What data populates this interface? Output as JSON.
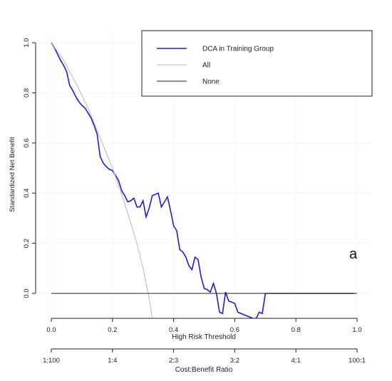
{
  "chart_data": {
    "type": "line",
    "title": "",
    "xlabel": "High Risk Threshold",
    "ylabel": "Standardized Net Benefit",
    "secondary_xlabel": "Cost:Benefit Ratio",
    "panel_label": "a",
    "xlim": [
      0.0,
      1.0
    ],
    "ylim": [
      -0.1,
      1.0
    ],
    "x_ticks": [
      {
        "value": 0.0,
        "label": "0.0"
      },
      {
        "value": 0.2,
        "label": "0.2"
      },
      {
        "value": 0.4,
        "label": "0.4"
      },
      {
        "value": 0.6,
        "label": "0.6"
      },
      {
        "value": 0.8,
        "label": "0.8"
      },
      {
        "value": 1.0,
        "label": "1.0"
      }
    ],
    "y_ticks": [
      {
        "value": 0.0,
        "label": "0.0"
      },
      {
        "value": 0.2,
        "label": "0.2"
      },
      {
        "value": 0.4,
        "label": "0.4"
      },
      {
        "value": 0.6,
        "label": "0.6"
      },
      {
        "value": 0.8,
        "label": "0.8"
      },
      {
        "value": 1.0,
        "label": "1.0"
      }
    ],
    "secondary_ticks": [
      {
        "value": 0.0,
        "label": "1:100"
      },
      {
        "value": 0.2,
        "label": "1:4"
      },
      {
        "value": 0.4,
        "label": "2:3"
      },
      {
        "value": 0.6,
        "label": "3:2"
      },
      {
        "value": 0.8,
        "label": "4:1"
      },
      {
        "value": 1.0,
        "label": "100:1"
      }
    ],
    "grid": true,
    "legend_position": "top-right",
    "series": [
      {
        "name": "DCA in Training Group",
        "color": "#1a1aee",
        "x": [
          0.0,
          0.01,
          0.02,
          0.03,
          0.04,
          0.05,
          0.06,
          0.07,
          0.08,
          0.09,
          0.1,
          0.11,
          0.12,
          0.13,
          0.14,
          0.15,
          0.16,
          0.17,
          0.18,
          0.19,
          0.2,
          0.21,
          0.22,
          0.23,
          0.24,
          0.25,
          0.26,
          0.27,
          0.28,
          0.29,
          0.3,
          0.31,
          0.32,
          0.33,
          0.34,
          0.35,
          0.36,
          0.37,
          0.38,
          0.39,
          0.4,
          0.41,
          0.42,
          0.43,
          0.44,
          0.45,
          0.46,
          0.47,
          0.48,
          0.49,
          0.5,
          0.51,
          0.52,
          0.53,
          0.54,
          0.55,
          0.56,
          0.57,
          0.58,
          0.59,
          0.6,
          0.61,
          0.62,
          0.63,
          0.64,
          0.65,
          0.66,
          0.67,
          0.68,
          0.69,
          0.7,
          0.71,
          0.75,
          0.8,
          0.85,
          0.9,
          0.95,
          0.99
        ],
        "values": [
          1.0,
          0.98,
          0.955,
          0.93,
          0.91,
          0.885,
          0.83,
          0.81,
          0.785,
          0.765,
          0.75,
          0.74,
          0.72,
          0.7,
          0.67,
          0.635,
          0.545,
          0.52,
          0.505,
          0.495,
          0.49,
          0.47,
          0.45,
          0.41,
          0.39,
          0.365,
          0.37,
          0.38,
          0.345,
          0.345,
          0.37,
          0.305,
          0.34,
          0.39,
          0.395,
          0.4,
          0.345,
          0.365,
          0.385,
          0.33,
          0.27,
          0.25,
          0.175,
          0.165,
          0.145,
          0.11,
          0.095,
          0.145,
          0.135,
          0.065,
          0.02,
          0.015,
          0.005,
          0.04,
          0.0,
          -0.075,
          -0.08,
          0.005,
          -0.03,
          -0.035,
          -0.04,
          -0.075,
          -0.08,
          -0.085,
          -0.09,
          -0.095,
          -0.1,
          -0.1,
          -0.075,
          -0.08,
          0.0,
          0.0,
          0.0,
          0.0,
          0.0,
          0.0,
          0.0,
          0.0
        ]
      },
      {
        "name": "All",
        "color": "#b8b8b8",
        "x": [
          0.0,
          0.04,
          0.08,
          0.12,
          0.16,
          0.2,
          0.24,
          0.26,
          0.28,
          0.3,
          0.32,
          0.33
        ],
        "values": [
          1.0,
          0.93,
          0.84,
          0.74,
          0.62,
          0.5,
          0.36,
          0.28,
          0.2,
          0.1,
          -0.02,
          -0.1
        ]
      },
      {
        "name": "None",
        "color": "#222222",
        "x": [
          0.0,
          1.0
        ],
        "values": [
          0.0,
          0.0
        ]
      }
    ]
  }
}
